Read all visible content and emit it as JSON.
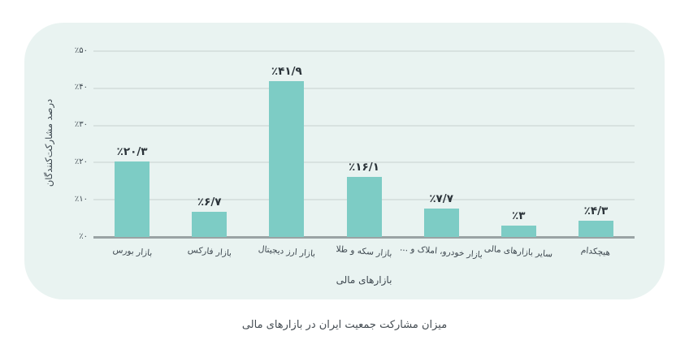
{
  "chart_data": {
    "type": "bar",
    "categories": [
      "بازار بورس",
      "بازار فارکس",
      "بازار ارز دیجیتال",
      "بازار سکه و طلا",
      "بازار خودرو، املاک و ...",
      "سایر بازارهای مالی",
      "هیچکدام"
    ],
    "values": [
      20.3,
      6.7,
      41.9,
      16.1,
      7.7,
      3,
      4.3
    ],
    "value_labels": [
      "٪۲۰/۳",
      "٪۶/۷",
      "٪۴۱/۹",
      "٪۱۶/۱",
      "٪۷/۷",
      "٪۳",
      "٪۴/۳"
    ],
    "yticks": [
      {
        "value": 0,
        "label": "٪۰"
      },
      {
        "value": 10,
        "label": "٪۱۰"
      },
      {
        "value": 20,
        "label": "٪۲۰"
      },
      {
        "value": 30,
        "label": "٪۳۰"
      },
      {
        "value": 40,
        "label": "٪۴۰"
      },
      {
        "value": 50,
        "label": "٪۵۰"
      }
    ],
    "ylim": [
      0,
      50
    ],
    "grid": true,
    "legend": false,
    "rtl": true,
    "xlabel": "بازارهای مالی",
    "ylabel": "درصد مشارکت‌کنندگان",
    "caption": "میزان مشارکت جمعیت ایران در بازارهای مالی",
    "bar_color": "#7dccc5"
  },
  "colors": {
    "panel_bg": "#e9f3f1",
    "gridline": "#d8e2e0",
    "axis_line": "#9aa3a4",
    "bar": "#7dccc5",
    "tick_text": "#3e4850",
    "value_text": "#2b3339",
    "caption_text": "#454d53"
  }
}
